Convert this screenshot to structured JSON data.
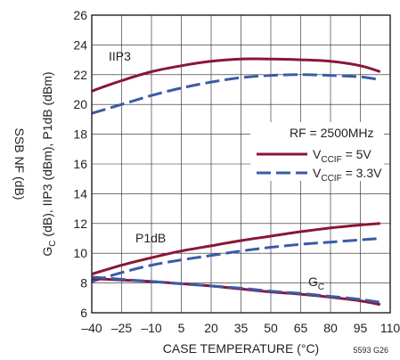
{
  "chart_data": {
    "type": "line",
    "xlabel": "CASE TEMPERATURE (°C)",
    "ylabel_left_outer": "SSB NF (dB)",
    "ylabel_left_main": "GC (dB), IIP3 (dBm), P1dB (dBm)",
    "ylabel_main_parts": {
      "g": "G",
      "c": "C",
      "rest": " (dB), IIP3 (dBm), P1dB (dBm)"
    },
    "xlim": [
      -40,
      110
    ],
    "ylim": [
      6,
      26
    ],
    "x_ticks": [
      -40,
      -25,
      -10,
      5,
      20,
      35,
      50,
      65,
      80,
      95,
      110
    ],
    "x_tick_labels": [
      "–40",
      "–25",
      "–10",
      "5",
      "20",
      "35",
      "50",
      "65",
      "80",
      "95",
      "110"
    ],
    "y_ticks": [
      6,
      8,
      10,
      12,
      14,
      16,
      18,
      20,
      22,
      24,
      26
    ],
    "grid": true,
    "legend": {
      "title": "RF = 2500MHz",
      "placement": "middle-right",
      "entries": [
        {
          "main": "V",
          "sub": "CCIF",
          "rest": " = 5V",
          "style": "solid"
        },
        {
          "main": "V",
          "sub": "CCIF",
          "rest": " = 3.3V",
          "style": "dashed"
        }
      ]
    },
    "annotations": {
      "iip3": "IIP3",
      "p1db": "P1dB",
      "gc_main": "G",
      "gc_sub": "C",
      "figure_id": "5593 G26"
    },
    "colors": {
      "solid": "#8b1538",
      "dashed": "#3a5ba7",
      "grid": "#231f20",
      "axis": "#231f20"
    },
    "series": [
      {
        "name": "IIP3 VCCIF = 5V",
        "style": "solid",
        "x": [
          -40,
          -25,
          -10,
          5,
          20,
          35,
          50,
          65,
          80,
          95,
          105
        ],
        "y": [
          20.9,
          21.6,
          22.2,
          22.6,
          22.9,
          23.05,
          23.05,
          23.0,
          22.9,
          22.6,
          22.2
        ]
      },
      {
        "name": "IIP3 VCCIF = 3.3V",
        "style": "dashed",
        "x": [
          -40,
          -25,
          -10,
          5,
          20,
          35,
          50,
          65,
          80,
          95,
          105
        ],
        "y": [
          19.4,
          20.0,
          20.6,
          21.1,
          21.5,
          21.8,
          21.95,
          22.0,
          21.95,
          21.85,
          21.65
        ]
      },
      {
        "name": "P1dB VCCIF = 5V",
        "style": "solid",
        "x": [
          -40,
          -25,
          -10,
          5,
          20,
          35,
          50,
          65,
          80,
          95,
          105
        ],
        "y": [
          8.6,
          9.2,
          9.7,
          10.15,
          10.5,
          10.85,
          11.15,
          11.45,
          11.7,
          11.9,
          12.0
        ]
      },
      {
        "name": "P1dB VCCIF = 3.3V",
        "style": "dashed",
        "x": [
          -40,
          -25,
          -10,
          5,
          20,
          35,
          50,
          65,
          80,
          95,
          105
        ],
        "y": [
          8.1,
          8.7,
          9.2,
          9.55,
          9.85,
          10.15,
          10.4,
          10.6,
          10.75,
          10.9,
          11.0
        ]
      },
      {
        "name": "GC VCCIF = 5V",
        "style": "solid",
        "x": [
          -40,
          -25,
          -10,
          5,
          20,
          35,
          50,
          65,
          80,
          95,
          105
        ],
        "y": [
          8.3,
          8.2,
          8.1,
          7.95,
          7.8,
          7.6,
          7.4,
          7.25,
          7.05,
          6.8,
          6.55
        ]
      },
      {
        "name": "GC VCCIF = 3.3V",
        "style": "dashed",
        "x": [
          -40,
          -25,
          -10,
          5,
          20,
          35,
          50,
          65,
          80,
          95,
          105
        ],
        "y": [
          8.4,
          8.25,
          8.1,
          7.95,
          7.8,
          7.65,
          7.45,
          7.3,
          7.1,
          6.9,
          6.7
        ]
      }
    ]
  }
}
